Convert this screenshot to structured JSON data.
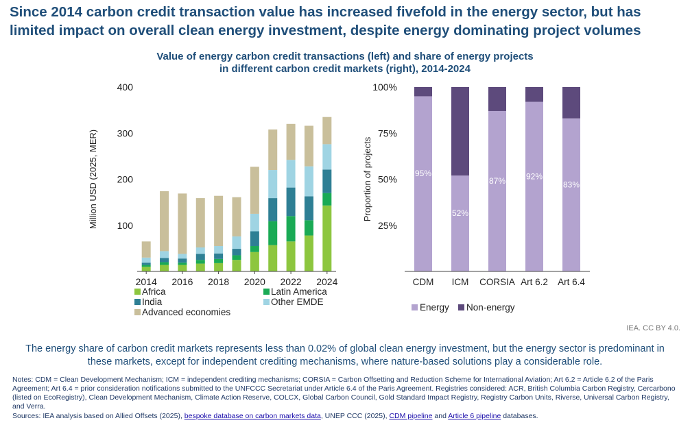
{
  "headline": "Since 2014 carbon credit transaction value has increased fivefold in the energy sector, but has limited impact on overall clean energy investment, despite energy dominating project volumes",
  "subtitle_line1": "Value of energy carbon credit transactions (left) and share of energy projects",
  "subtitle_line2": "in different carbon credit markets (right), 2014-2024",
  "credit": "IEA. CC BY 4.0.",
  "caption": "The energy share of carbon credit markets represents less than 0.02% of global clean energy investment, but the energy sector is predominant in these markets, except for independent crediting mechanisms, where nature-based solutions play a considerable role.",
  "notes": "Notes: CDM = Clean Development Mechanism; ICM = independent crediting mechanisms; CORSIA = Carbon Offsetting and Reduction Scheme for International Aviation; Art 6.2 = Article 6.2 of the Paris Agreement; Art 6.4 = prior consideration notifications submitted to the UNFCCC Secretariat under Article 6.4 of the Paris Agreement. Registries considered: ACR, British Columbia Carbon Registry, Cercarbono (listed on EcoRegistry), Clean Development Mechanism, Climate Action Reserve, COLCX, Global Carbon Council, Gold Standard Impact Registry, Registry Carbon Units, Riverse, Universal Carbon Registry, and Verra.",
  "sources": {
    "prefix": "Sources: IEA analysis based on Allied Offsets (2025), ",
    "link1": "bespoke database on carbon markets data",
    "mid1": ", UNEP CCC (2025), ",
    "link2": "CDM pipeline",
    "mid2": " and ",
    "link3": "Article 6 pipeline",
    "suffix": " databases."
  },
  "chart_data": [
    {
      "type": "bar",
      "stacked": true,
      "ylabel": "Million USD (2025, MER)",
      "ylim": [
        0,
        400
      ],
      "yticks": [
        100,
        200,
        300,
        400
      ],
      "categories": [
        "2014",
        "2015",
        "2016",
        "2017",
        "2018",
        "2019",
        "2020",
        "2021",
        "2022",
        "2023",
        "2024"
      ],
      "xtick_labels": [
        "2014",
        "2016",
        "2018",
        "2020",
        "2022",
        "2024"
      ],
      "grid": false,
      "legend": "bottom",
      "series": [
        {
          "name": "Africa",
          "color": "#8dc63f",
          "values": [
            10,
            14,
            14,
            17,
            18,
            25,
            42,
            57,
            65,
            78,
            143
          ]
        },
        {
          "name": "Latin America",
          "color": "#1aaa55",
          "values": [
            4,
            6,
            5,
            8,
            9,
            10,
            13,
            52,
            55,
            33,
            27
          ]
        },
        {
          "name": "India",
          "color": "#2e7f94",
          "values": [
            5,
            9,
            9,
            13,
            12,
            14,
            32,
            50,
            62,
            52,
            51
          ]
        },
        {
          "name": "Other EMDE",
          "color": "#9fd4e3",
          "values": [
            11,
            15,
            10,
            14,
            16,
            27,
            38,
            61,
            60,
            65,
            55
          ]
        },
        {
          "name": "Advanced economies",
          "color": "#c9bf9b",
          "values": [
            35,
            130,
            131,
            107,
            109,
            85,
            102,
            88,
            78,
            88,
            59
          ]
        }
      ]
    },
    {
      "type": "bar",
      "stacked": true,
      "ylabel": "Proportion of projects",
      "ylim": [
        0,
        100
      ],
      "yticks": [
        "25%",
        "50%",
        "75%",
        "100%"
      ],
      "categories": [
        "CDM",
        "ICM",
        "CORSIA",
        "Art 6.2",
        "Art 6.4"
      ],
      "grid": false,
      "legend": "bottom",
      "series": [
        {
          "name": "Energy",
          "color": "#b3a3cf",
          "values": [
            95,
            52,
            87,
            92,
            83
          ],
          "labels": [
            "95%",
            "52%",
            "87%",
            "92%",
            "83%"
          ]
        },
        {
          "name": "Non-energy",
          "color": "#5d4a7c",
          "values": [
            5,
            48,
            13,
            8,
            17
          ]
        }
      ]
    }
  ]
}
